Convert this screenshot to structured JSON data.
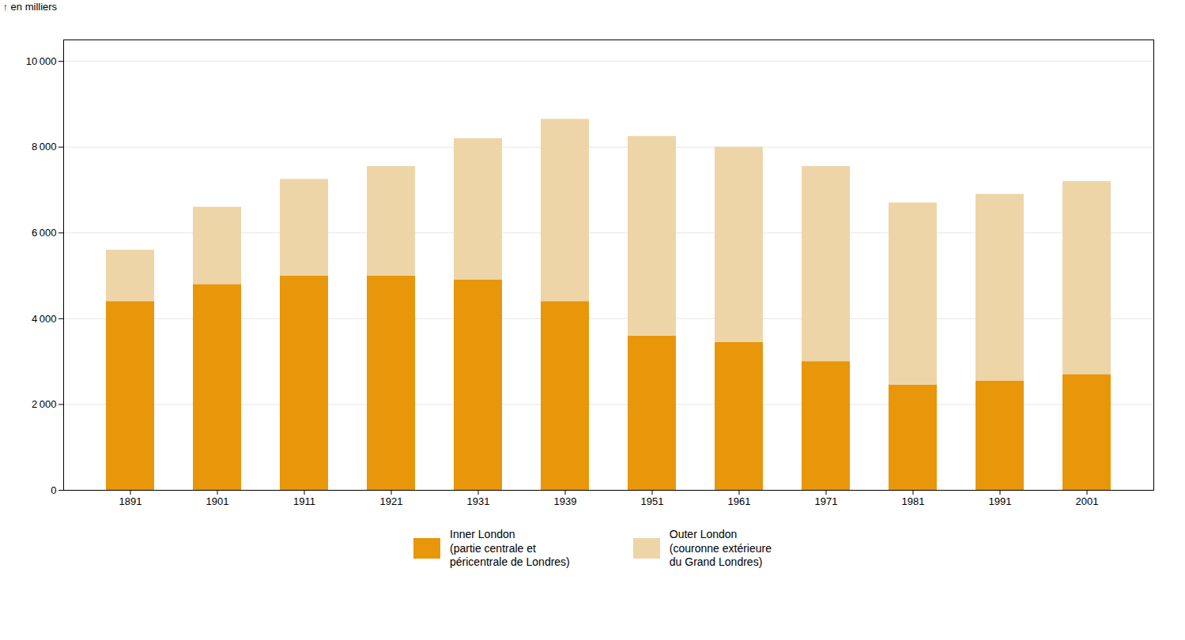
{
  "chart_data": {
    "type": "bar",
    "stacked": true,
    "categories": [
      "1891",
      "1901",
      "1911",
      "1921",
      "1931",
      "1939",
      "1951",
      "1961",
      "1971",
      "1981",
      "1991",
      "2001"
    ],
    "series": [
      {
        "name": "Inner London\n(partie centrale et\npéricentrale de Londres)",
        "color": "#E8960A",
        "values": [
          4400,
          4800,
          5000,
          5000,
          4900,
          4400,
          3600,
          3450,
          3000,
          2450,
          2550,
          2700
        ]
      },
      {
        "name": "Outer London\n(couronne extérieure\ndu Grand Londres)",
        "color": "#EDD5A8",
        "values": [
          1200,
          1800,
          2250,
          2550,
          3300,
          4250,
          4650,
          4550,
          4550,
          4250,
          4350,
          4500
        ]
      }
    ],
    "y_label": "en milliers",
    "ylim": [
      0,
      10500
    ],
    "yticks": [
      0,
      {
        "value": 2000,
        "label": "2 000"
      },
      {
        "value": 4000,
        "label": "4 000"
      },
      {
        "value": 6000,
        "label": "6 000"
      },
      {
        "value": 8000,
        "label": "8 000"
      },
      {
        "value": 10000,
        "label": "10 000"
      }
    ],
    "grid": true,
    "legend": "bottom"
  }
}
